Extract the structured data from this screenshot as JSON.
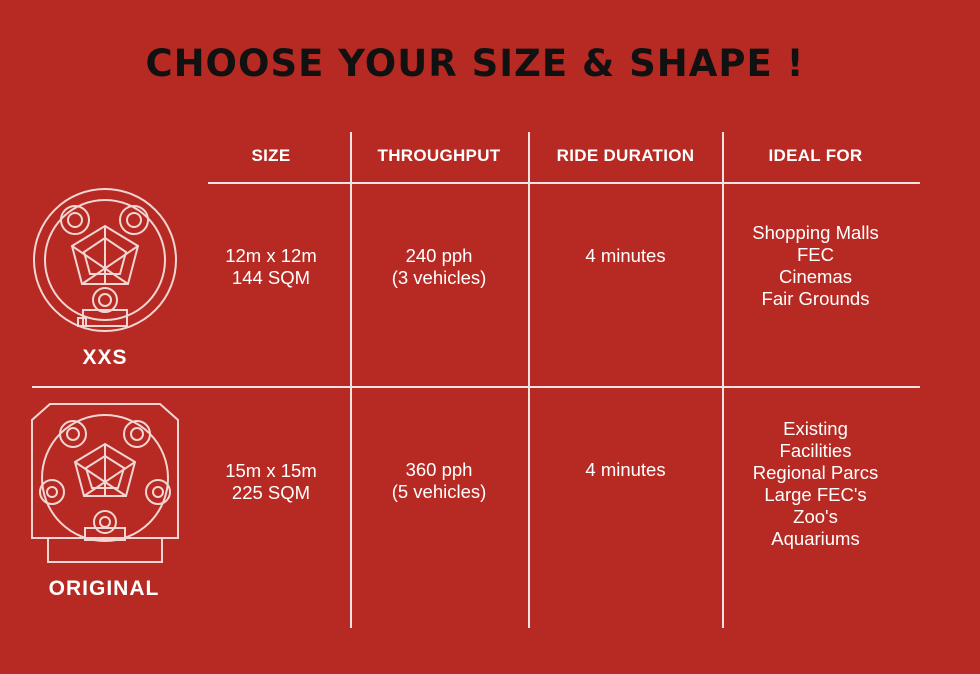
{
  "title": "CHOOSE YOUR SIZE & SHAPE !",
  "headers": [
    "SIZE",
    "THROUGHPUT",
    "RIDE DURATION",
    "IDEAL FOR"
  ],
  "rows": [
    {
      "name": "XXS",
      "icon": "xxs-layout-icon",
      "size": [
        "12m x 12m",
        "144 SQM"
      ],
      "throughput": [
        "240 pph",
        "(3 vehicles)"
      ],
      "duration": "4 minutes",
      "ideal_for": [
        "Shopping Malls",
        "FEC",
        "Cinemas",
        "Fair Grounds"
      ]
    },
    {
      "name": "ORIGINAL",
      "icon": "original-layout-icon",
      "size": [
        "15m x 15m",
        "225 SQM"
      ],
      "throughput": [
        "360 pph",
        "(5 vehicles)"
      ],
      "duration": "4 minutes",
      "ideal_for": [
        "Existing",
        "Facilities",
        "Regional Parcs",
        "Large FEC's",
        "Zoo's",
        "Aquariums"
      ]
    }
  ],
  "colors": {
    "background": "#b72a23",
    "title": "#111111",
    "text": "#ffffff",
    "lines": "#f3e4e2"
  }
}
